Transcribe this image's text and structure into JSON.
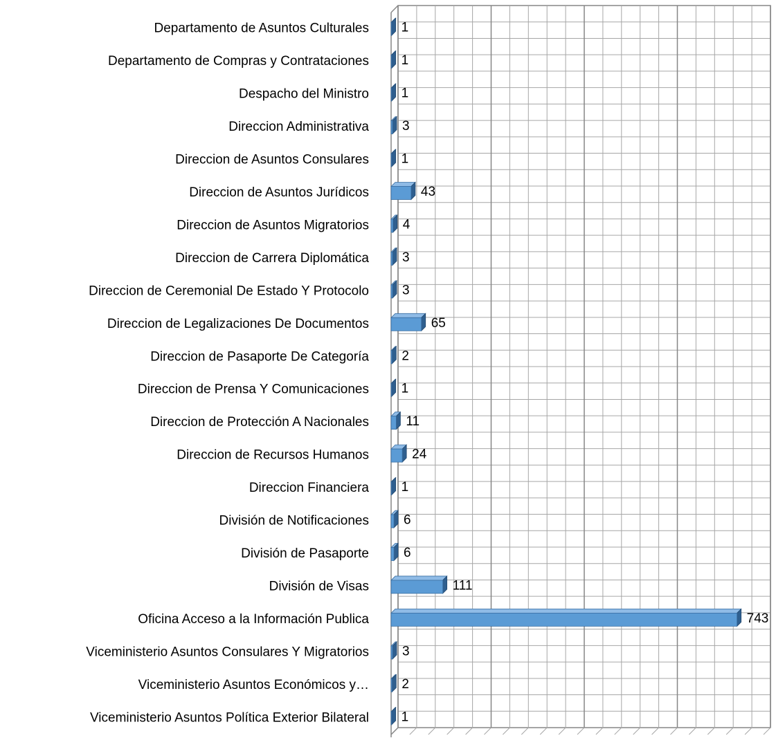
{
  "chart_data": {
    "type": "bar",
    "orientation": "horizontal",
    "categories": [
      "Departamento de Asuntos Culturales",
      "Departamento de Compras y Contrataciones",
      "Despacho del Ministro",
      "Direccion Administrativa",
      "Direccion de Asuntos Consulares",
      "Direccion de Asuntos Jurídicos",
      "Direccion de Asuntos Migratorios",
      "Direccion de Carrera Diplomática",
      "Direccion de Ceremonial De Estado Y Protocolo",
      "Direccion de Legalizaciones De Documentos",
      "Direccion de Pasaporte De Categoría",
      "Direccion de Prensa Y Comunicaciones",
      "Direccion de Protección A Nacionales",
      "Direccion de Recursos Humanos",
      "Direccion Financiera",
      "División de Notificaciones",
      "División de Pasaporte",
      "División de Visas",
      "Oficina Acceso a la Información Publica",
      "Viceministerio Asuntos Consulares Y Migratorios",
      "Viceministerio Asuntos Económicos y…",
      "Viceministerio Asuntos Política Exterior Bilateral"
    ],
    "values": [
      1,
      1,
      1,
      3,
      1,
      43,
      4,
      3,
      3,
      65,
      2,
      1,
      11,
      24,
      1,
      6,
      6,
      111,
      743,
      3,
      2,
      1
    ],
    "color": "#5b9bd5",
    "xlim": [
      0,
      800
    ],
    "xticks": [
      0,
      200,
      400,
      600,
      800
    ],
    "grid": true,
    "minor_grid_divisions": 5,
    "three_d": true
  }
}
